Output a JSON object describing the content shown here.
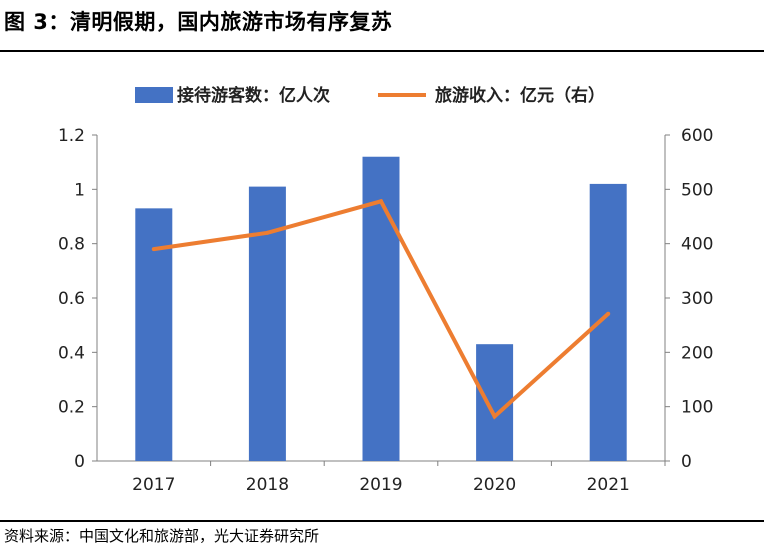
{
  "figure": {
    "title": "图 3：清明假期，国内旅游市场有序复苏",
    "source": "资料来源：中国文化和旅游部，光大证券研究所"
  },
  "colors": {
    "bar": "#4472C4",
    "line": "#ED7D31",
    "axis": "#808080"
  },
  "chart_data": {
    "type": "bar+line",
    "categories": [
      "2017",
      "2018",
      "2019",
      "2020",
      "2021"
    ],
    "series": [
      {
        "name": "接待游客数：亿人次",
        "type": "bar",
        "axis": "left",
        "values": [
          0.93,
          1.01,
          1.12,
          0.43,
          1.02
        ]
      },
      {
        "name": "旅游收入：亿元（右）",
        "type": "line",
        "axis": "right",
        "values": [
          390,
          420,
          478,
          82,
          271
        ]
      }
    ],
    "y_left": {
      "min": 0,
      "max": 1.2,
      "ticks": [
        "0",
        "0.2",
        "0.4",
        "0.6",
        "0.8",
        "1",
        "1.2"
      ]
    },
    "y_right": {
      "min": 0,
      "max": 600,
      "ticks": [
        "0",
        "100",
        "200",
        "300",
        "400",
        "500",
        "600"
      ]
    },
    "legend_position": "top-center",
    "grid": false
  }
}
